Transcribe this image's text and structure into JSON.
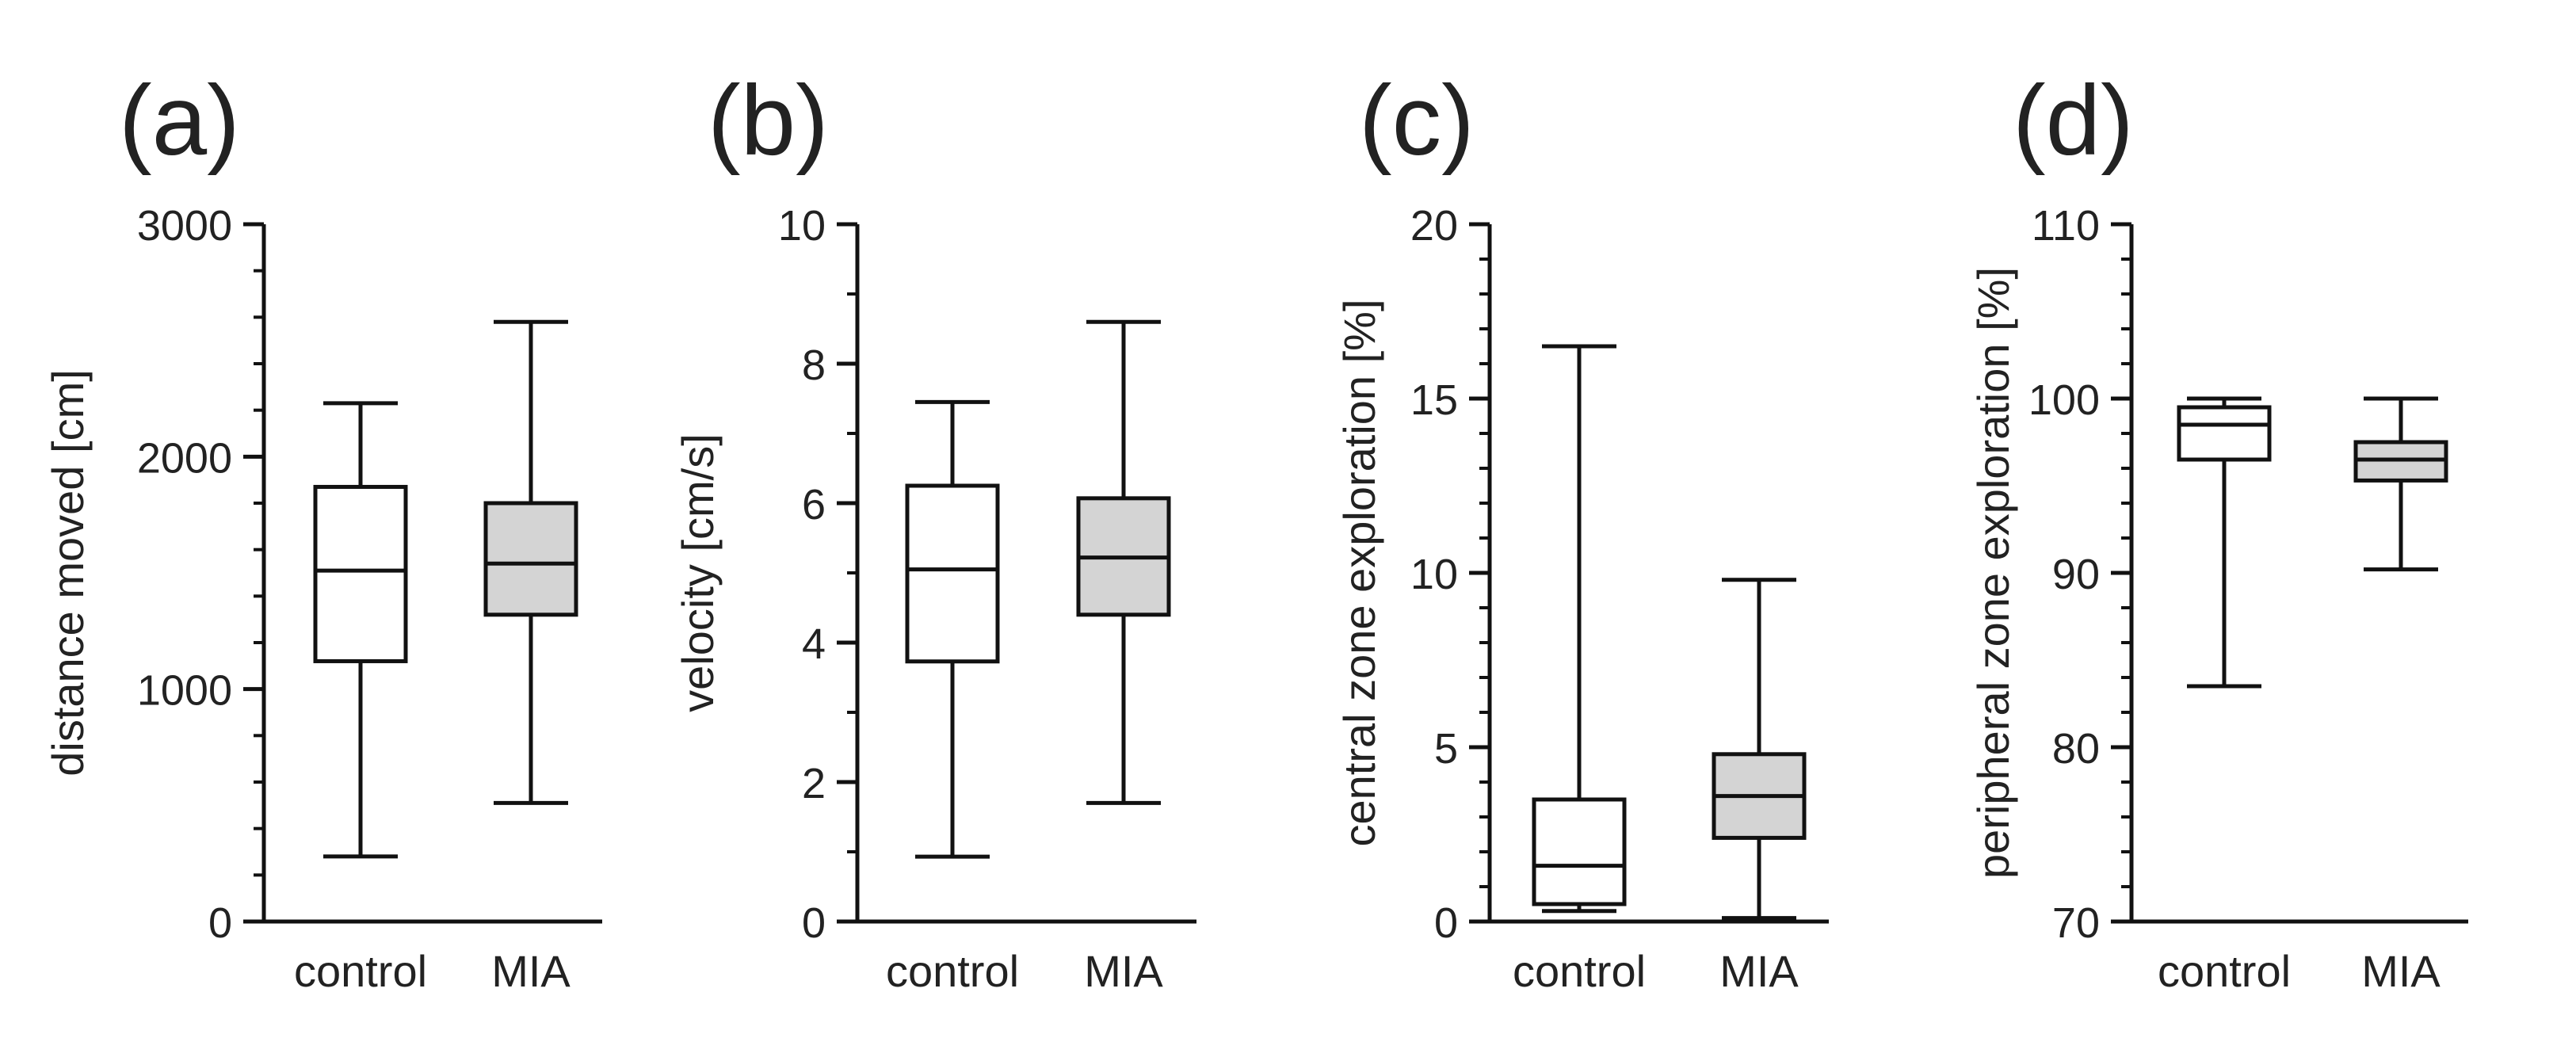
{
  "figure": {
    "description_type": "multi-panel box plot",
    "box_colors": {
      "control": "#ffffff",
      "MIA": "#d4d4d4"
    },
    "stroke_color": "#111111"
  },
  "chart_data": [
    {
      "type": "box",
      "panel_label": "(a)",
      "ylabel": "distance moved [cm]",
      "ylim": [
        0,
        3000
      ],
      "yticks": [
        0,
        1000,
        2000,
        3000
      ],
      "minor_ticks_per_interval": 5,
      "categories": [
        "control",
        "MIA"
      ],
      "boxes": [
        {
          "name": "control",
          "min": 280,
          "q1": 1120,
          "median": 1510,
          "q3": 1870,
          "max": 2230
        },
        {
          "name": "MIA",
          "min": 510,
          "q1": 1320,
          "median": 1540,
          "q3": 1800,
          "max": 2580
        }
      ]
    },
    {
      "type": "box",
      "panel_label": "(b)",
      "ylabel": "velocity [cm/s]",
      "ylim": [
        0,
        10
      ],
      "yticks": [
        0,
        2,
        4,
        6,
        8,
        10
      ],
      "minor_ticks_per_interval": 2,
      "categories": [
        "control",
        "MIA"
      ],
      "boxes": [
        {
          "name": "control",
          "min": 0.93,
          "q1": 3.73,
          "median": 5.05,
          "q3": 6.25,
          "max": 7.45
        },
        {
          "name": "MIA",
          "min": 1.7,
          "q1": 4.4,
          "median": 5.22,
          "q3": 6.07,
          "max": 8.6
        }
      ]
    },
    {
      "type": "box",
      "panel_label": "(c)",
      "ylabel": "central zone exploration [%]",
      "ylim": [
        0,
        20
      ],
      "yticks": [
        0,
        5,
        10,
        15,
        20
      ],
      "minor_ticks_per_interval": 5,
      "categories": [
        "control",
        "MIA"
      ],
      "boxes": [
        {
          "name": "control",
          "min": 0.3,
          "q1": 0.5,
          "median": 1.6,
          "q3": 3.5,
          "max": 16.5
        },
        {
          "name": "MIA",
          "min": 0.1,
          "q1": 2.4,
          "median": 3.6,
          "q3": 4.8,
          "max": 9.8
        }
      ]
    },
    {
      "type": "box",
      "panel_label": "(d)",
      "ylabel": "peripheral zone exploration [%]",
      "ylim": [
        70,
        110
      ],
      "yticks": [
        70,
        80,
        90,
        100,
        110
      ],
      "minor_ticks_per_interval": 5,
      "categories": [
        "control",
        "MIA"
      ],
      "boxes": [
        {
          "name": "control",
          "min": 83.5,
          "q1": 96.5,
          "median": 98.5,
          "q3": 99.5,
          "max": 100
        },
        {
          "name": "MIA",
          "min": 90.2,
          "q1": 95.3,
          "median": 96.5,
          "q3": 97.5,
          "max": 100
        }
      ]
    }
  ]
}
